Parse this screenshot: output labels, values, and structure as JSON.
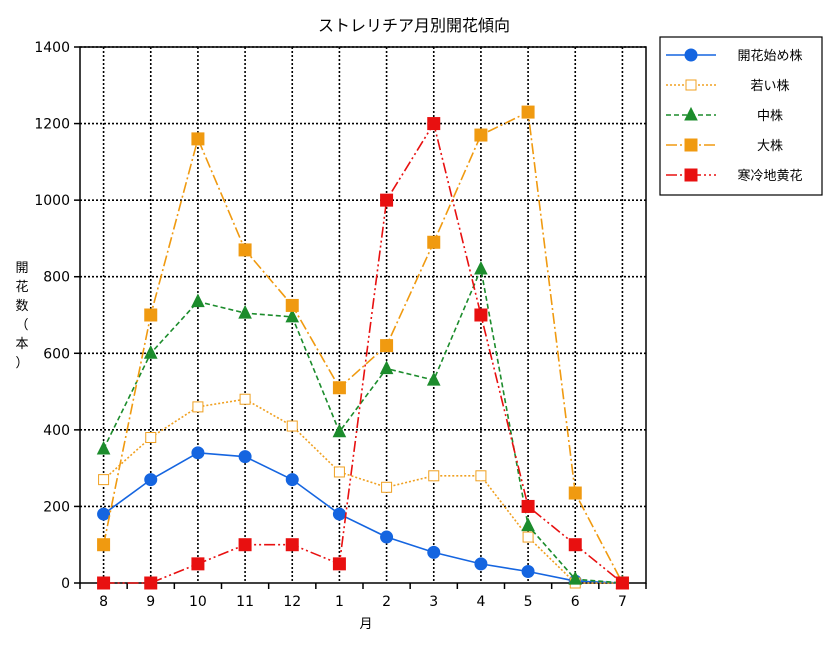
{
  "chart_data": {
    "type": "line",
    "title": "ストレリチア月別開花傾向",
    "xlabel": "月",
    "ylabel": "開花数（本）",
    "categories": [
      "8",
      "9",
      "10",
      "11",
      "12",
      "1",
      "2",
      "3",
      "4",
      "5",
      "6",
      "7"
    ],
    "ylim": [
      0,
      1400
    ],
    "yticks": [
      "0",
      "200",
      "400",
      "600",
      "800",
      "1000",
      "1200",
      "1400"
    ],
    "grid": true,
    "legend_position": "right-top",
    "series": [
      {
        "name": "開花始め株",
        "values": [
          180,
          270,
          340,
          330,
          270,
          180,
          120,
          80,
          50,
          30,
          5,
          0
        ],
        "color": "#1565e0",
        "marker": "circle",
        "dash": "solid"
      },
      {
        "name": "若い株",
        "values": [
          270,
          380,
          460,
          480,
          410,
          290,
          250,
          280,
          280,
          120,
          0,
          0
        ],
        "color": "#f0a020",
        "marker": "square-open",
        "dash": "dotted"
      },
      {
        "name": "中株",
        "values": [
          350,
          600,
          735,
          705,
          695,
          395,
          560,
          530,
          820,
          150,
          10,
          0
        ],
        "color": "#1c8c2c",
        "marker": "triangle",
        "dash": "dashed"
      },
      {
        "name": "大株",
        "values": [
          100,
          700,
          1160,
          870,
          725,
          510,
          620,
          890,
          1170,
          1230,
          235,
          0
        ],
        "color": "#f09a10",
        "marker": "square",
        "dash": "dashdot"
      },
      {
        "name": "寒冷地黄花",
        "values": [
          0,
          0,
          50,
          100,
          100,
          50,
          1000,
          1200,
          700,
          200,
          100,
          0
        ],
        "color": "#e81010",
        "marker": "square",
        "dash": "dashdotdot"
      }
    ]
  }
}
